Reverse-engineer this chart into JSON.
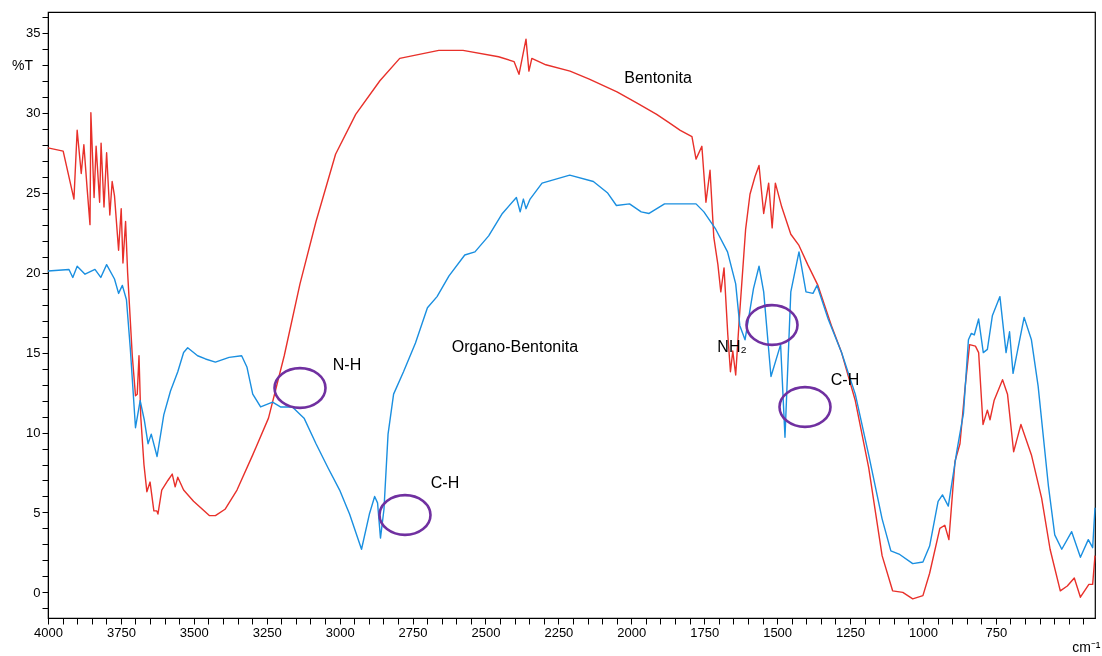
{
  "chart_data": {
    "type": "line",
    "xlabel": "cm⁻¹",
    "ylabel": "%T",
    "xlim": [
      4000,
      410
    ],
    "ylim": [
      -1.6,
      36.3
    ],
    "xticks": [
      4000,
      {
        "value": 3950,
        "label": null
      },
      {
        "value": 3900,
        "label": null
      },
      {
        "value": 3850,
        "label": null
      },
      {
        "value": 3800,
        "label": null
      },
      3750,
      {
        "value": 3700,
        "label": null
      },
      {
        "value": 3650,
        "label": null
      },
      {
        "value": 3600,
        "label": null
      },
      {
        "value": 3550,
        "label": null
      },
      3500,
      {
        "value": 3450,
        "label": null
      },
      {
        "value": 3400,
        "label": null
      },
      {
        "value": 3350,
        "label": null
      },
      {
        "value": 3300,
        "label": null
      },
      3250,
      {
        "value": 3200,
        "label": null
      },
      {
        "value": 3150,
        "label": null
      },
      {
        "value": 3100,
        "label": null
      },
      {
        "value": 3050,
        "label": null
      },
      3000,
      {
        "value": 2950,
        "label": null
      },
      {
        "value": 2900,
        "label": null
      },
      {
        "value": 2850,
        "label": null
      },
      {
        "value": 2800,
        "label": null
      },
      2750,
      {
        "value": 2700,
        "label": null
      },
      {
        "value": 2650,
        "label": null
      },
      {
        "value": 2600,
        "label": null
      },
      {
        "value": 2550,
        "label": null
      },
      2500,
      {
        "value": 2450,
        "label": null
      },
      {
        "value": 2400,
        "label": null
      },
      {
        "value": 2350,
        "label": null
      },
      {
        "value": 2300,
        "label": null
      },
      2250,
      {
        "value": 2200,
        "label": null
      },
      {
        "value": 2150,
        "label": null
      },
      {
        "value": 2100,
        "label": null
      },
      {
        "value": 2050,
        "label": null
      },
      2000,
      {
        "value": 1950,
        "label": null
      },
      {
        "value": 1900,
        "label": null
      },
      {
        "value": 1850,
        "label": null
      },
      {
        "value": 1800,
        "label": null
      },
      1750,
      {
        "value": 1700,
        "label": null
      },
      {
        "value": 1650,
        "label": null
      },
      {
        "value": 1600,
        "label": null
      },
      {
        "value": 1550,
        "label": null
      },
      1500,
      {
        "value": 1450,
        "label": null
      },
      {
        "value": 1400,
        "label": null
      },
      {
        "value": 1350,
        "label": null
      },
      {
        "value": 1300,
        "label": null
      },
      1250,
      {
        "value": 1200,
        "label": null
      },
      {
        "value": 1150,
        "label": null
      },
      {
        "value": 1100,
        "label": null
      },
      {
        "value": 1050,
        "label": null
      },
      1000,
      {
        "value": 950,
        "label": null
      },
      {
        "value": 900,
        "label": null
      },
      {
        "value": 850,
        "label": null
      },
      {
        "value": 800,
        "label": null
      },
      750,
      {
        "value": 700,
        "label": null
      },
      {
        "value": 650,
        "label": null
      },
      {
        "value": 600,
        "label": null
      },
      {
        "value": 550,
        "label": null
      },
      {
        "value": 500,
        "label": null
      },
      {
        "value": 450,
        "label": null
      }
    ],
    "yticks": [
      {
        "value": -1,
        "label": null
      },
      0,
      {
        "value": 1,
        "label": null
      },
      {
        "value": 2,
        "label": null
      },
      {
        "value": 3,
        "label": null
      },
      {
        "value": 4,
        "label": null
      },
      5,
      {
        "value": 6,
        "label": null
      },
      {
        "value": 7,
        "label": null
      },
      {
        "value": 8,
        "label": null
      },
      {
        "value": 9,
        "label": null
      },
      10,
      {
        "value": 11,
        "label": null
      },
      {
        "value": 12,
        "label": null
      },
      {
        "value": 13,
        "label": null
      },
      {
        "value": 14,
        "label": null
      },
      15,
      {
        "value": 16,
        "label": null
      },
      {
        "value": 17,
        "label": null
      },
      {
        "value": 18,
        "label": null
      },
      {
        "value": 19,
        "label": null
      },
      20,
      {
        "value": 21,
        "label": null
      },
      {
        "value": 22,
        "label": null
      },
      {
        "value": 23,
        "label": null
      },
      {
        "value": 24,
        "label": null
      },
      25,
      {
        "value": 26,
        "label": null
      },
      {
        "value": 27,
        "label": null
      },
      {
        "value": 28,
        "label": null
      },
      {
        "value": 29,
        "label": null
      },
      30,
      {
        "value": 31,
        "label": null
      },
      {
        "value": 32,
        "label": null
      },
      {
        "value": 33,
        "label": null
      },
      {
        "value": 34,
        "label": null
      },
      35,
      {
        "value": 36,
        "label": null
      }
    ],
    "grid": false,
    "marker": "none",
    "line_style": "solid",
    "series": [
      {
        "name": "Bentonita",
        "color": "#e8302a",
        "x": [
          4000,
          3948,
          3911,
          3900,
          3886,
          3877,
          3866,
          3856,
          3853,
          3842,
          3835,
          3823,
          3818,
          3808,
          3799,
          3788,
          3780,
          3772,
          3758,
          3749,
          3743,
          3734,
          3727,
          3711,
          3700,
          3694,
          3688,
          3682,
          3671,
          3661,
          3650,
          3637,
          3627,
          3623,
          3610,
          3589,
          3574,
          3564,
          3555,
          3535,
          3501,
          3446,
          3426,
          3393,
          3352,
          3298,
          3244,
          3190,
          3136,
          3081,
          3014,
          2945,
          2862,
          2794,
          2660,
          2577,
          2455,
          2402,
          2385,
          2361,
          2351,
          2341,
          2293,
          2210,
          2144,
          2049,
          1980,
          1913,
          1872,
          1832,
          1792,
          1778,
          1758,
          1744,
          1730,
          1717,
          1703,
          1693,
          1682,
          1669,
          1660,
          1652,
          1642,
          1629,
          1608,
          1593,
          1576,
          1562,
          1546,
          1529,
          1517,
          1506,
          1484,
          1453,
          1425,
          1395,
          1360,
          1314,
          1279,
          1232,
          1186,
          1140,
          1104,
          1069,
          1035,
          1000,
          977,
          942,
          925,
          911,
          890,
          873,
          855,
          840,
          820,
          809,
          794,
          779,
          770,
          756,
          727,
          710,
          689,
          664,
          628,
          593,
          564,
          529,
          505,
          481,
          460,
          431,
          418,
          410
        ],
        "values": [
          27.8,
          27.6,
          24.6,
          28.9,
          26.2,
          28.0,
          25.3,
          23.0,
          30.0,
          24.7,
          27.9,
          24.4,
          28.1,
          24.1,
          27.5,
          23.6,
          25.7,
          24.8,
          21.4,
          24.0,
          20.6,
          23.2,
          20.0,
          14.8,
          12.3,
          12.4,
          14.8,
          11.0,
          8.0,
          6.3,
          6.9,
          5.1,
          5.1,
          4.9,
          6.4,
          7.0,
          7.4,
          6.6,
          7.2,
          6.4,
          5.7,
          4.8,
          4.8,
          5.2,
          6.4,
          8.6,
          10.9,
          14.8,
          19.3,
          23.2,
          27.4,
          29.9,
          32.0,
          33.4,
          33.9,
          33.9,
          33.5,
          33.2,
          32.4,
          34.6,
          32.6,
          33.4,
          33.0,
          32.6,
          32.1,
          31.3,
          30.6,
          29.9,
          29.4,
          28.9,
          28.5,
          27.1,
          27.9,
          24.4,
          26.4,
          22.2,
          20.5,
          18.8,
          20.3,
          16.1,
          13.8,
          15.1,
          13.6,
          17.3,
          22.7,
          24.9,
          26.0,
          26.7,
          23.7,
          25.6,
          22.8,
          25.6,
          24.1,
          22.4,
          21.7,
          20.5,
          19.2,
          16.7,
          15.0,
          12.0,
          7.8,
          2.3,
          0.1,
          0.0,
          -0.4,
          -0.2,
          1.2,
          4.0,
          4.2,
          3.3,
          8.2,
          9.3,
          12.9,
          15.5,
          15.4,
          15.0,
          10.5,
          11.4,
          10.8,
          12.0,
          13.3,
          12.4,
          8.8,
          10.5,
          8.6,
          5.9,
          2.7,
          0.1,
          0.4,
          0.9,
          -0.3,
          0.5,
          0.5,
          2.3
        ]
      },
      {
        "name": "Organo-Bentonita",
        "color": "#1a8fe0",
        "x": [
          4000,
          3928,
          3915,
          3900,
          3873,
          3839,
          3819,
          3799,
          3772,
          3758,
          3745,
          3731,
          3718,
          3700,
          3684,
          3670,
          3657,
          3646,
          3626,
          3603,
          3580,
          3555,
          3535,
          3521,
          3487,
          3460,
          3426,
          3379,
          3336,
          3318,
          3298,
          3271,
          3230,
          3203,
          3162,
          3122,
          3081,
          3040,
          3000,
          2966,
          2925,
          2898,
          2880,
          2870,
          2860,
          2848,
          2834,
          2815,
          2781,
          2740,
          2699,
          2666,
          2625,
          2571,
          2536,
          2489,
          2442,
          2394,
          2381,
          2370,
          2361,
          2347,
          2306,
          2211,
          2130,
          2082,
          2051,
          2006,
          1966,
          1939,
          1886,
          1832,
          1778,
          1751,
          1710,
          1670,
          1642,
          1628,
          1610,
          1581,
          1562,
          1546,
          1521,
          1488,
          1473,
          1453,
          1425,
          1401,
          1377,
          1363,
          1325,
          1279,
          1232,
          1186,
          1140,
          1110,
          1082,
          1035,
          1000,
          977,
          948,
          933,
          913,
          884,
          861,
          844,
          834,
          824,
          809,
          793,
          779,
          762,
          736,
          715,
          703,
          691,
          653,
          628,
          605,
          570,
          548,
          524,
          490,
          460,
          433,
          418,
          410
        ],
        "values": [
          20.1,
          20.2,
          19.7,
          20.4,
          19.9,
          20.2,
          19.7,
          20.5,
          19.6,
          18.7,
          19.2,
          18.3,
          15.3,
          10.3,
          12.0,
          10.8,
          9.3,
          9.9,
          8.5,
          11.1,
          12.6,
          13.8,
          15.0,
          15.3,
          14.8,
          14.6,
          14.4,
          14.7,
          14.8,
          14.1,
          12.4,
          11.6,
          11.9,
          11.6,
          11.6,
          10.9,
          9.3,
          7.8,
          6.4,
          4.9,
          2.7,
          4.9,
          6.0,
          5.6,
          3.4,
          5.2,
          9.9,
          12.4,
          13.8,
          15.6,
          17.8,
          18.5,
          19.8,
          21.1,
          21.3,
          22.3,
          23.7,
          24.7,
          23.8,
          24.6,
          24.0,
          24.6,
          25.6,
          26.1,
          25.7,
          25.0,
          24.2,
          24.3,
          23.8,
          23.7,
          24.3,
          24.3,
          24.3,
          23.8,
          22.7,
          21.3,
          19.3,
          16.7,
          15.8,
          19.0,
          20.4,
          18.8,
          13.5,
          15.5,
          9.7,
          18.8,
          21.3,
          18.8,
          18.7,
          19.2,
          17.1,
          15.0,
          12.4,
          8.6,
          4.6,
          2.6,
          2.4,
          1.8,
          1.9,
          2.9,
          5.7,
          6.1,
          5.4,
          8.8,
          11.2,
          15.8,
          16.2,
          16.1,
          17.1,
          15.0,
          15.2,
          17.3,
          18.5,
          15.0,
          16.3,
          13.7,
          17.2,
          15.8,
          12.9,
          6.7,
          3.6,
          2.7,
          3.8,
          2.2,
          3.3,
          2.8,
          5.3
        ]
      }
    ],
    "annotations": [
      "N-H",
      "C-H",
      "NH₂",
      "C-H"
    ]
  }
}
